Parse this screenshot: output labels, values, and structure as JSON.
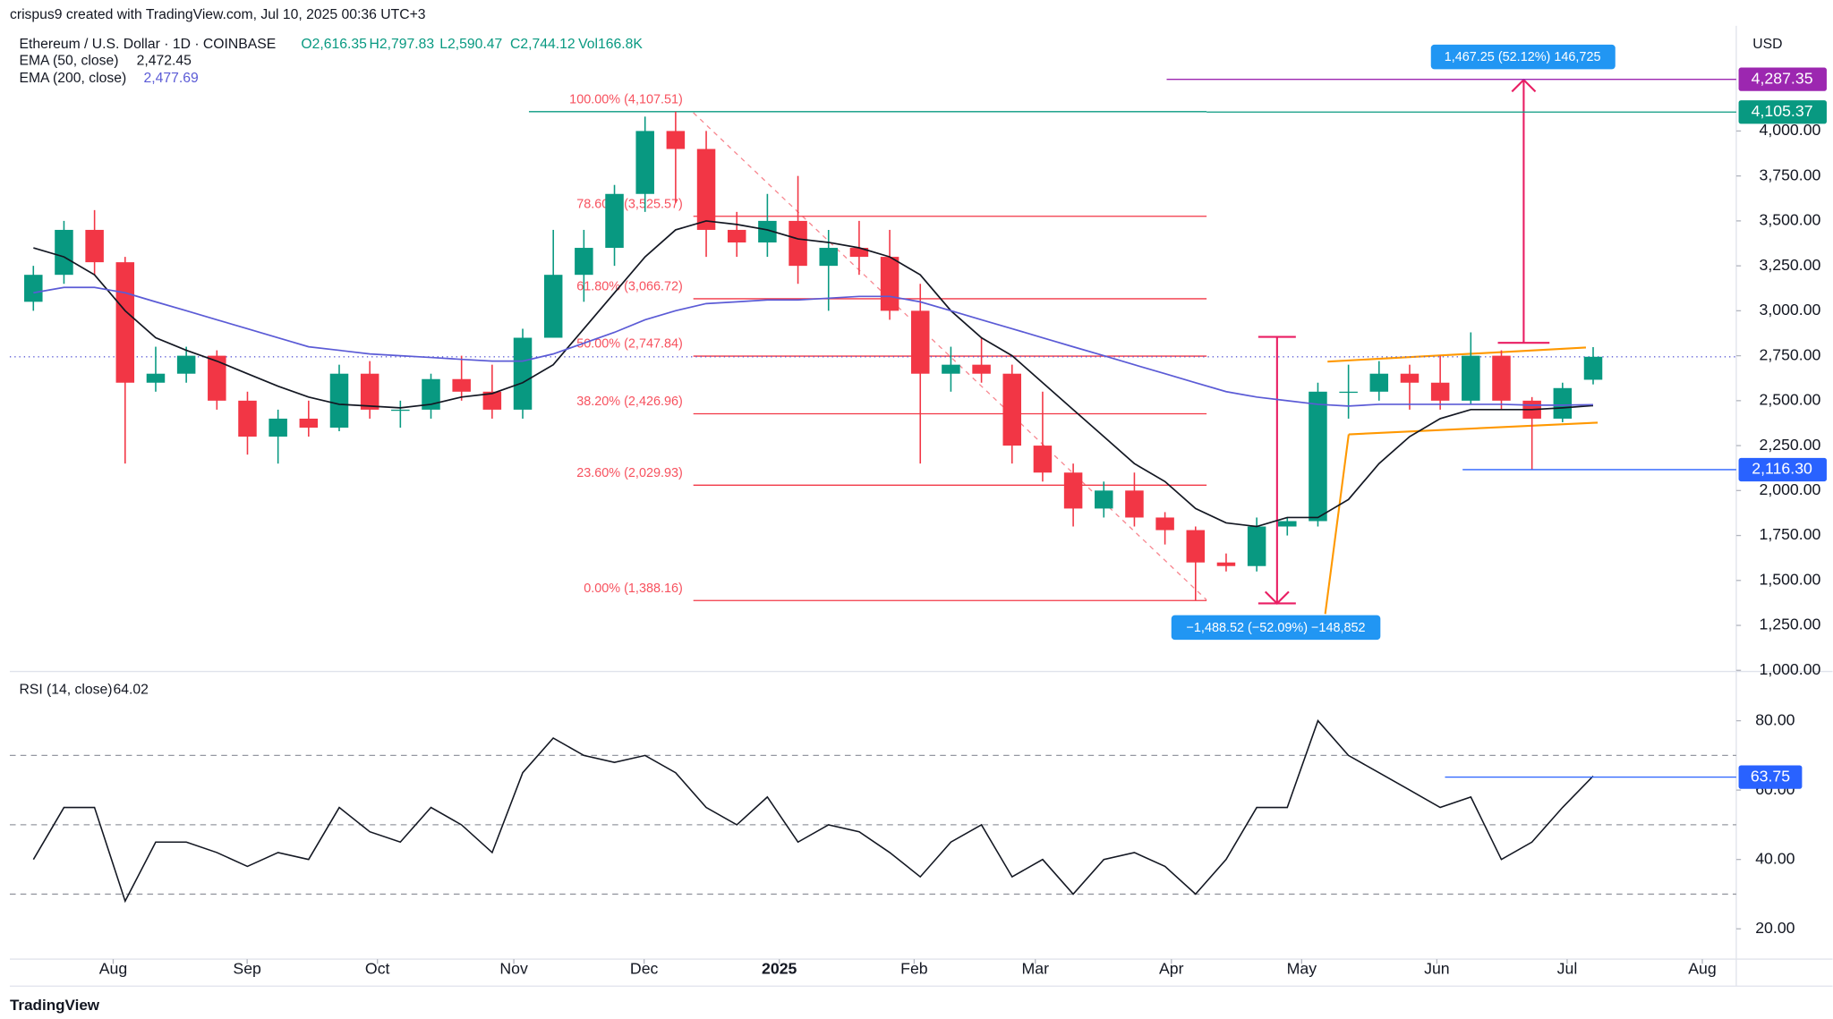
{
  "header": {
    "credit": "crispus9 created with TradingView.com, Jul 10, 2025 00:36 UTC+3",
    "symbol": "Ethereum / U.S. Dollar · 1D · COINBASE",
    "open": "O2,616.35",
    "high": "H2,797.83",
    "low": "L2,590.47",
    "close": "C2,744.12",
    "volume": "Vol166.8K",
    "currency": "USD",
    "footer": "TradingView"
  },
  "chart_data": [
    {
      "type": "candlestick",
      "up_color": "#089981",
      "down_color": "#f23645",
      "open": [
        3050,
        3200,
        3450,
        3270,
        2600,
        2650,
        2750,
        2500,
        2300,
        2400,
        2350,
        2650,
        2450,
        2450,
        2620,
        2550,
        2450,
        2850,
        3200,
        3350,
        3650,
        4000,
        3900,
        3450,
        3380,
        3500,
        3250,
        3350,
        3300,
        3000,
        2650,
        2700,
        2650,
        2250,
        2100,
        1900,
        2000,
        1850,
        1780,
        1600,
        1580,
        1800,
        1830,
        2550,
        2550,
        2650,
        2600,
        2500,
        2750,
        2500,
        2400,
        2616.35
      ],
      "high": [
        3250,
        3500,
        3560,
        3300,
        2800,
        2800,
        2780,
        2550,
        2450,
        2500,
        2700,
        2720,
        2500,
        2650,
        2750,
        2700,
        2900,
        3450,
        3450,
        3700,
        4080,
        4107.51,
        4000,
        3550,
        3650,
        3750,
        3450,
        3500,
        3450,
        3150,
        2800,
        2850,
        2700,
        2550,
        2150,
        2050,
        2100,
        1880,
        1800,
        1650,
        1850,
        1850,
        2600,
        2700,
        2720,
        2700,
        2750,
        2880,
        2780,
        2520,
        2600,
        2797.83
      ],
      "low": [
        3000,
        3150,
        3200,
        2150,
        2550,
        2600,
        2450,
        2200,
        2150,
        2300,
        2330,
        2400,
        2350,
        2400,
        2500,
        2400,
        2400,
        2850,
        3050,
        3250,
        3550,
        3600,
        3300,
        3300,
        3300,
        3150,
        3000,
        3200,
        2950,
        2150,
        2550,
        2600,
        2150,
        2050,
        1800,
        1850,
        1800,
        1700,
        1388.16,
        1550,
        1550,
        1750,
        1800,
        2400,
        2500,
        2450,
        2450,
        2480,
        2450,
        2116.3,
        2380,
        2590.47
      ],
      "close": [
        3200,
        3450,
        3270,
        2600,
        2650,
        2750,
        2500,
        2300,
        2400,
        2350,
        2650,
        2450,
        2450,
        2620,
        2550,
        2450,
        2850,
        3200,
        3350,
        3650,
        4000,
        3900,
        3450,
        3380,
        3500,
        3250,
        3350,
        3300,
        3000,
        2650,
        2700,
        2650,
        2250,
        2100,
        1900,
        2000,
        1850,
        1780,
        1600,
        1580,
        1800,
        1830,
        2550,
        2550,
        2650,
        2600,
        2500,
        2750,
        2500,
        2400,
        2570,
        2744.12
      ],
      "lines": [
        {
          "name": "EMA (50, close)",
          "value_label": "2,472.45",
          "color": "#131722",
          "values": [
            3350,
            3300,
            3200,
            3000,
            2850,
            2780,
            2720,
            2650,
            2580,
            2520,
            2480,
            2470,
            2460,
            2480,
            2520,
            2540,
            2600,
            2700,
            2900,
            3100,
            3300,
            3450,
            3500,
            3480,
            3450,
            3400,
            3380,
            3350,
            3300,
            3200,
            3000,
            2850,
            2750,
            2600,
            2450,
            2300,
            2150,
            2050,
            1900,
            1820,
            1800,
            1850,
            1850,
            1950,
            2150,
            2300,
            2400,
            2450,
            2450,
            2450,
            2460,
            2472.45
          ]
        },
        {
          "name": "EMA (200, close)",
          "value_label": "2,477.69",
          "color": "#5b5bd6",
          "values": [
            3100,
            3130,
            3130,
            3100,
            3050,
            3000,
            2950,
            2900,
            2850,
            2800,
            2780,
            2760,
            2750,
            2740,
            2730,
            2720,
            2720,
            2760,
            2820,
            2880,
            2950,
            3000,
            3040,
            3050,
            3060,
            3060,
            3070,
            3080,
            3080,
            3050,
            3000,
            2950,
            2900,
            2850,
            2800,
            2750,
            2700,
            2650,
            2600,
            2550,
            2520,
            2500,
            2480,
            2470,
            2480,
            2480,
            2480,
            2480,
            2480,
            2475,
            2475,
            2477.69
          ]
        }
      ],
      "last_price": 2744.12,
      "fib_levels": [
        {
          "value": 4107.51,
          "label": "100.00% (4,107.51)"
        },
        {
          "value": 3525.57,
          "label": "78.60% (3,525.57)"
        },
        {
          "value": 3066.72,
          "label": "61.80% (3,066.72)"
        },
        {
          "value": 2747.84,
          "label": "50.00% (2,747.84)"
        },
        {
          "value": 2426.96,
          "label": "38.20% (2,426.96)"
        },
        {
          "value": 2029.93,
          "label": "23.60% (2,029.93)"
        },
        {
          "value": 1388.16,
          "label": "0.00% (1,388.16)"
        }
      ],
      "price_labels": [
        {
          "value": 4287.35,
          "label": "4,287.35",
          "color": "#9c27b0"
        },
        {
          "value": 4105.37,
          "label": "4,105.37",
          "color": "#089981"
        },
        {
          "value": 2116.3,
          "label": "2,116.30",
          "color": "#2962ff"
        }
      ],
      "measures": [
        {
          "label": "1,467.25 (52.12%) 146,725"
        },
        {
          "label": "−1,488.52 (−52.09%) −148,852"
        }
      ],
      "xlim": [
        -0.77,
        55.68
      ],
      "xticks": [
        {
          "value": 2.61,
          "label": "Aug"
        },
        {
          "value": 6.99,
          "label": "Sep"
        },
        {
          "value": 11.25,
          "label": "Oct"
        },
        {
          "value": 15.71,
          "label": "Nov"
        },
        {
          "value": 19.97,
          "label": "Dec"
        },
        {
          "value": 24.39,
          "label": "2025"
        },
        {
          "value": 28.8,
          "label": "Feb"
        },
        {
          "value": 32.76,
          "label": "Mar"
        },
        {
          "value": 37.21,
          "label": "Apr"
        },
        {
          "value": 41.47,
          "label": "May"
        },
        {
          "value": 45.89,
          "label": "Jun"
        },
        {
          "value": 50.15,
          "label": "Jul"
        },
        {
          "value": 54.57,
          "label": "Aug"
        }
      ],
      "ylim": [
        1000,
        4585
      ],
      "yticks": [
        {
          "value": 1000,
          "label": "1,000.00"
        },
        {
          "value": 1250,
          "label": "1,250.00"
        },
        {
          "value": 1500,
          "label": "1,500.00"
        },
        {
          "value": 1750,
          "label": "1,750.00"
        },
        {
          "value": 2000,
          "label": "2,000.00"
        },
        {
          "value": 2250,
          "label": "2,250.00"
        },
        {
          "value": 2500,
          "label": "2,500.00"
        },
        {
          "value": 2750,
          "label": "2,750.00"
        },
        {
          "value": 3000,
          "label": "3,000.00"
        },
        {
          "value": 3250,
          "label": "3,250.00"
        },
        {
          "value": 3500,
          "label": "3,500.00"
        },
        {
          "value": 3750,
          "label": "3,750.00"
        },
        {
          "value": 4000,
          "label": "4,000.00"
        }
      ]
    },
    {
      "type": "line",
      "series": [
        {
          "name": "RSI (14, close)",
          "value_label": "64.02",
          "color": "#131722",
          "values": [
            40,
            55,
            55,
            28,
            45,
            45,
            42,
            38,
            42,
            40,
            55,
            48,
            45,
            55,
            50,
            42,
            65,
            75,
            70,
            68,
            70,
            65,
            55,
            50,
            58,
            45,
            50,
            48,
            42,
            35,
            45,
            50,
            35,
            40,
            30,
            40,
            42,
            38,
            30,
            40,
            55,
            55,
            80,
            70,
            65,
            60,
            55,
            58,
            40,
            45,
            55,
            64.02
          ]
        }
      ],
      "levels": [
        70,
        50,
        30
      ],
      "annotation": {
        "value": 63.75,
        "label": "63.75"
      },
      "ylim": [
        11.6,
        92.5
      ],
      "yticks": [
        {
          "value": 20,
          "label": "20.00"
        },
        {
          "value": 40,
          "label": "40.00"
        },
        {
          "value": 60,
          "label": "60.00"
        },
        {
          "value": 80,
          "label": "80.00"
        }
      ]
    }
  ]
}
